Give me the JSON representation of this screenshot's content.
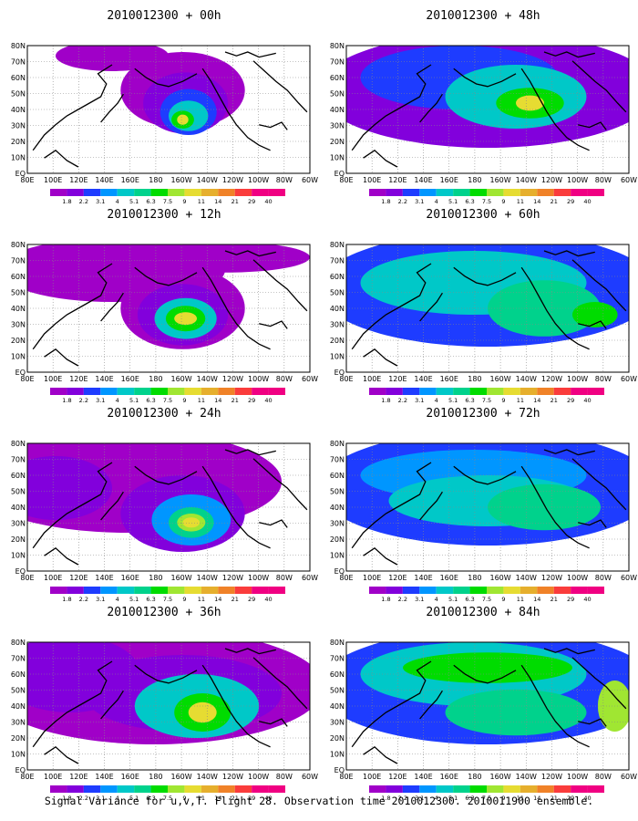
{
  "panels": [
    {
      "title": "2010012300 + 00h",
      "pattern": "p00"
    },
    {
      "title": "2010012300 + 48h",
      "pattern": "p48"
    },
    {
      "title": "2010012300 + 12h",
      "pattern": "p12"
    },
    {
      "title": "2010012300 + 60h",
      "pattern": "p60"
    },
    {
      "title": "2010012300 + 24h",
      "pattern": "p24"
    },
    {
      "title": "2010012300 + 72h",
      "pattern": "p72"
    },
    {
      "title": "2010012300 + 36h",
      "pattern": "p36"
    },
    {
      "title": "2010012300 + 84h",
      "pattern": "p84"
    }
  ],
  "lat_labels": [
    "80N",
    "70N",
    "60N",
    "50N",
    "40N",
    "30N",
    "20N",
    "10N",
    "EQ"
  ],
  "lon_labels": [
    "80E",
    "100E",
    "120E",
    "140E",
    "160E",
    "180",
    "160W",
    "140W",
    "120W",
    "100W",
    "80W",
    "60W"
  ],
  "colorbar": {
    "labels": [
      "1.8",
      "2.2",
      "3.1",
      "4",
      "5.1",
      "6.3",
      "7.5",
      "9",
      "11",
      "14",
      "21",
      "29",
      "40"
    ],
    "colors": [
      "#a000c8",
      "#8200dc",
      "#1e3cff",
      "#0096ff",
      "#00c8c8",
      "#00d28c",
      "#00dc00",
      "#a0e632",
      "#e6dc32",
      "#e6af2d",
      "#f08228",
      "#fa3c3c",
      "#f00082"
    ]
  },
  "footer": "Signal Variance for u,v,T. Flight 28. Observation time 2010012300. 2010011900 ensemble."
}
